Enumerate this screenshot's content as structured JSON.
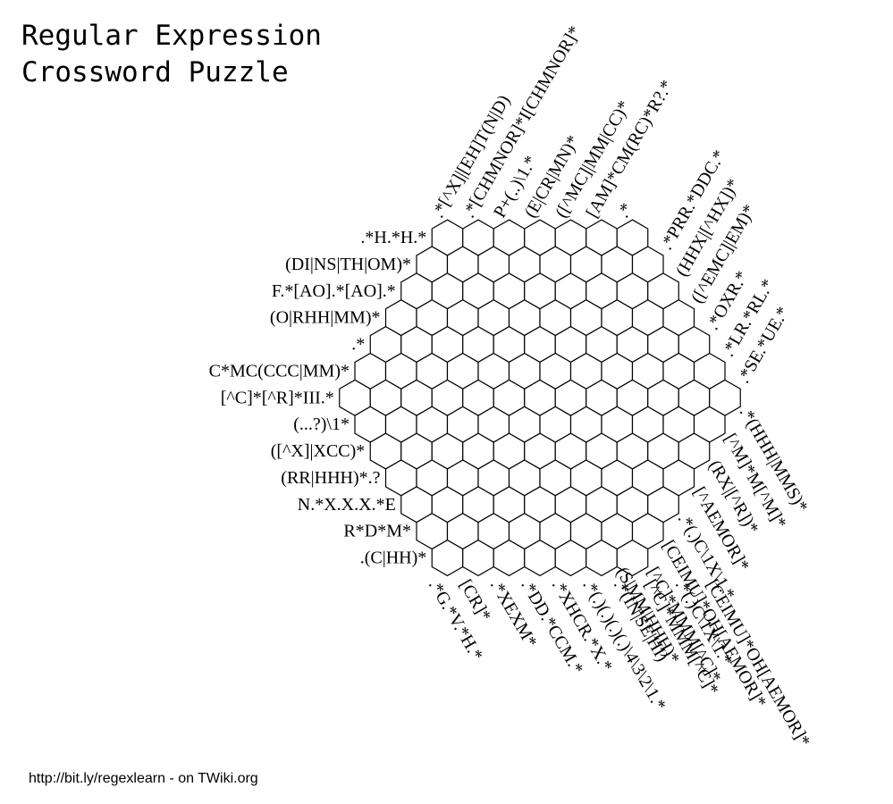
{
  "title": {
    "line1": "Regular Expression",
    "line2": "Crossword Puzzle"
  },
  "grid": {
    "row_lengths": [
      7,
      8,
      9,
      10,
      11,
      12,
      13,
      12,
      11,
      10,
      9,
      8,
      7
    ]
  },
  "clues": {
    "left": [
      ".*H.*H.*",
      "(DI|NS|TH|OM)*",
      "F.*[AO].*[AO].*",
      "(O|RHH|MM)*",
      ".*",
      "C*MC(CCC|MM)*",
      "[^C]*[^R]*III.*",
      "(...?)\\1*",
      "([^X]|XCC)*",
      "(RR|HHH)*.?",
      "N.*X.X.X.*E",
      "R*D*M*",
      ".(C|HH)*"
    ],
    "top": [
      ".*[^X]|[EH]T(N|D)",
      ".*[CHMNOR]*I[CHMNOR]*",
      "P+(..)\\1.*",
      "(E|CR|MN)*",
      "([^MC]|MM|CC)*",
      "[AM]*CM(RC)*R?.*",
      ".*"
    ],
    "upper_right": [
      ".*PRR.*DDC.*",
      "(HHX|[^HX])*",
      "([^EMC]|EM)*",
      ".*OXR.*",
      ".*LR.*RL.*",
      ".*SE.*UE.*"
    ],
    "lower_right": [
      ".*(HHH|MMS)*",
      "[^M]*M[^M]*",
      "(RX|[^R])*",
      "[^AEMOR]*",
      ".*(.)C\\1X\\1.*",
      "[CEIMU]*OH[AEMOR]*",
      "[^C]*MMM[^C]*",
      "(S|MM|HHH)*"
    ],
    "bottom": [
      ".*G.*V.*H.*",
      "[CR]*",
      ".*XEXM*",
      ".*DD.*CCM.*",
      ".*XHCR.*X.*",
      ".*(.)(.)(.)(.)\\4\\3\\2\\1.*",
      ".*(IN|SE|HI)",
      "[^C]*MMM[^C]*",
      ".*(.)C\\1X\\1.*",
      "[CEIMU]*OH[AEMOR]*"
    ]
  },
  "footer": {
    "text": "http://bit.ly/regexlearn - on TWiki.org"
  }
}
